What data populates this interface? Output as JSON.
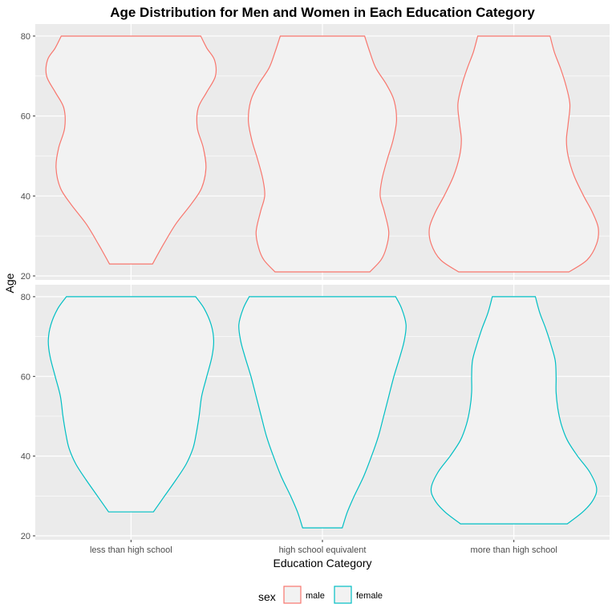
{
  "chart_data": {
    "type": "violin",
    "title": "Age Distribution for Men and Women in Each Education Category",
    "xlabel": "Education Category",
    "ylabel": "Age",
    "categories": [
      "less than high school",
      "high school equivalent",
      "more than high school"
    ],
    "ylim": [
      19,
      83
    ],
    "yticks": [
      20,
      40,
      60,
      80
    ],
    "grid": true,
    "legend": {
      "title": "sex",
      "position": "bottom",
      "entries": [
        {
          "label": "male",
          "color": "#F8766D"
        },
        {
          "label": "female",
          "color": "#00BFC4"
        }
      ]
    },
    "panels": [
      {
        "series": "male",
        "color": "#F8766D",
        "violins": [
          {
            "category": "less than high school",
            "min": 23,
            "max": 80,
            "profile": [
              [
                23,
                0.25
              ],
              [
                28,
                0.38
              ],
              [
                33,
                0.52
              ],
              [
                38,
                0.7
              ],
              [
                42,
                0.82
              ],
              [
                47,
                0.87
              ],
              [
                52,
                0.84
              ],
              [
                57,
                0.77
              ],
              [
                62,
                0.78
              ],
              [
                66,
                0.88
              ],
              [
                70,
                0.98
              ],
              [
                74,
                0.97
              ],
              [
                77,
                0.88
              ],
              [
                80,
                0.81
              ]
            ]
          },
          {
            "category": "high school equivalent",
            "min": 21,
            "max": 80,
            "profile": [
              [
                21,
                0.55
              ],
              [
                24,
                0.68
              ],
              [
                27,
                0.74
              ],
              [
                31,
                0.77
              ],
              [
                36,
                0.72
              ],
              [
                40,
                0.67
              ],
              [
                44,
                0.69
              ],
              [
                49,
                0.75
              ],
              [
                54,
                0.82
              ],
              [
                59,
                0.86
              ],
              [
                64,
                0.83
              ],
              [
                68,
                0.74
              ],
              [
                72,
                0.62
              ],
              [
                76,
                0.55
              ],
              [
                80,
                0.49
              ]
            ]
          },
          {
            "category": "more than high school",
            "min": 21,
            "max": 80,
            "profile": [
              [
                21,
                0.64
              ],
              [
                24,
                0.85
              ],
              [
                28,
                0.96
              ],
              [
                32,
                0.98
              ],
              [
                36,
                0.91
              ],
              [
                40,
                0.81
              ],
              [
                45,
                0.7
              ],
              [
                50,
                0.63
              ],
              [
                54,
                0.61
              ],
              [
                58,
                0.63
              ],
              [
                63,
                0.65
              ],
              [
                68,
                0.6
              ],
              [
                72,
                0.54
              ],
              [
                76,
                0.47
              ],
              [
                80,
                0.42
              ]
            ]
          }
        ]
      },
      {
        "series": "female",
        "color": "#00BFC4",
        "violins": [
          {
            "category": "less than high school",
            "min": 26,
            "max": 80,
            "profile": [
              [
                26,
                0.26
              ],
              [
                30,
                0.39
              ],
              [
                34,
                0.52
              ],
              [
                38,
                0.64
              ],
              [
                42,
                0.72
              ],
              [
                46,
                0.76
              ],
              [
                50,
                0.79
              ],
              [
                55,
                0.82
              ],
              [
                60,
                0.88
              ],
              [
                65,
                0.94
              ],
              [
                69,
                0.96
              ],
              [
                73,
                0.93
              ],
              [
                77,
                0.85
              ],
              [
                80,
                0.75
              ]
            ]
          },
          {
            "category": "high school equivalent",
            "min": 22,
            "max": 80,
            "profile": [
              [
                22,
                0.23
              ],
              [
                26,
                0.29
              ],
              [
                30,
                0.37
              ],
              [
                35,
                0.48
              ],
              [
                40,
                0.57
              ],
              [
                45,
                0.65
              ],
              [
                50,
                0.71
              ],
              [
                55,
                0.77
              ],
              [
                60,
                0.83
              ],
              [
                65,
                0.9
              ],
              [
                69,
                0.95
              ],
              [
                73,
                0.97
              ],
              [
                77,
                0.92
              ],
              [
                80,
                0.85
              ]
            ]
          },
          {
            "category": "more than high school",
            "min": 23,
            "max": 80,
            "profile": [
              [
                23,
                0.62
              ],
              [
                26,
                0.8
              ],
              [
                29,
                0.92
              ],
              [
                32,
                0.96
              ],
              [
                36,
                0.88
              ],
              [
                40,
                0.74
              ],
              [
                44,
                0.62
              ],
              [
                48,
                0.55
              ],
              [
                52,
                0.51
              ],
              [
                56,
                0.49
              ],
              [
                60,
                0.49
              ],
              [
                64,
                0.48
              ],
              [
                68,
                0.43
              ],
              [
                72,
                0.37
              ],
              [
                76,
                0.3
              ],
              [
                80,
                0.25
              ]
            ]
          }
        ]
      }
    ]
  }
}
